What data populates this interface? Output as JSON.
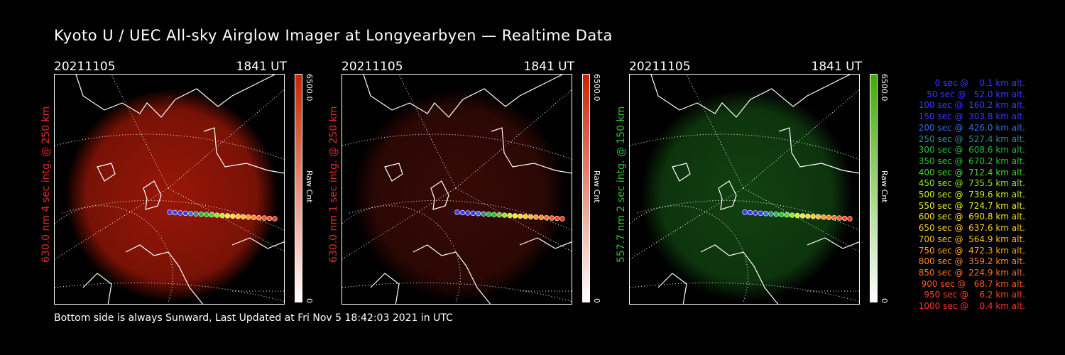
{
  "title": "Kyoto U / UEC All-sky Airglow Imager at Longyearbyen — Realtime Data",
  "footer": "Bottom side is always Sunward, Last Updated at Fri Nov  5 18:42:03 2021 in UTC",
  "panels": [
    {
      "date": "20211105",
      "time": "1841 UT",
      "side_label": "630.0 nm 4 sec intg. @ 250 km",
      "label_color": "#e03020",
      "cbar_max": "6500.0",
      "cbar_min": "0",
      "cbar_unit": "Raw Cnt",
      "cbar_color": "#cc2200",
      "glow": "#a01808"
    },
    {
      "date": "20211105",
      "time": "1841 UT",
      "side_label": "630.0 nm 1 sec intg. @ 250 km",
      "label_color": "#e03020",
      "cbar_max": "6500.0",
      "cbar_min": "0",
      "cbar_unit": "Raw Cnt",
      "cbar_color": "#cc2200",
      "glow": "#3a0a06"
    },
    {
      "date": "20211105",
      "time": "1841 UT",
      "side_label": "557.7 nm 2 sec intg. @ 150 km",
      "label_color": "#30c030",
      "cbar_max": "6500.0",
      "cbar_min": "0",
      "cbar_unit": "Raw Cnt",
      "cbar_color": "#44aa00",
      "glow": "#124512"
    }
  ],
  "trajectory_legend": [
    {
      "text": "   0 sec @    0.1 km alt.",
      "color": "#3a3aff"
    },
    {
      "text": "  50 sec @   52.0 km alt.",
      "color": "#3a3aff"
    },
    {
      "text": " 100 sec @  160.2 km alt.",
      "color": "#3a3aff"
    },
    {
      "text": " 150 sec @  303.8 km alt.",
      "color": "#3a3aff"
    },
    {
      "text": " 200 sec @  426.0 km alt.",
      "color": "#2f6fe0"
    },
    {
      "text": " 250 sec @  527.4 km alt.",
      "color": "#2a9090"
    },
    {
      "text": " 300 sec @  608.6 km alt.",
      "color": "#22bb44"
    },
    {
      "text": " 350 sec @  670.2 km alt.",
      "color": "#22cc22"
    },
    {
      "text": " 400 sec @  712.4 km alt.",
      "color": "#44dd22"
    },
    {
      "text": " 450 sec @  735.5 km alt.",
      "color": "#88ee22"
    },
    {
      "text": " 500 sec @  739.6 km alt.",
      "color": "#ccee22"
    },
    {
      "text": " 550 sec @  724.7 km alt.",
      "color": "#eeee22"
    },
    {
      "text": " 600 sec @  690.8 km alt.",
      "color": "#ffdd22"
    },
    {
      "text": " 650 sec @  637.6 km alt.",
      "color": "#ffcc22"
    },
    {
      "text": " 700 sec @  564.9 km alt.",
      "color": "#ffbb22"
    },
    {
      "text": " 750 sec @  472.3 km alt.",
      "color": "#ffa022"
    },
    {
      "text": " 800 sec @  359.2 km alt.",
      "color": "#ff8a22"
    },
    {
      "text": " 850 sec @  224.9 km alt.",
      "color": "#ff7022"
    },
    {
      "text": " 900 sec @   68.7 km alt.",
      "color": "#ff5522"
    },
    {
      "text": " 950 sec @    6.2 km alt.",
      "color": "#ff4422"
    },
    {
      "text": "1000 sec @    0.4 km alt.",
      "color": "#ff3322"
    }
  ]
}
